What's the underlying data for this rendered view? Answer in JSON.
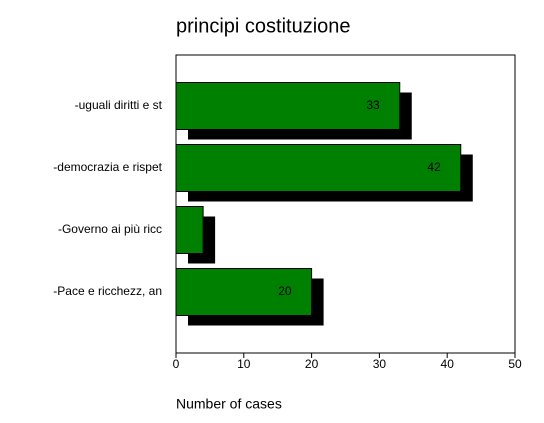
{
  "chart_data": {
    "type": "bar",
    "orientation": "horizontal",
    "title": "principi costituzione",
    "categories": [
      "-uguali diritti e st",
      "-democrazia e rispet",
      "-Governo ai più ricc",
      "-Pace e ricchezz, an"
    ],
    "values": [
      33,
      42,
      4,
      20
    ],
    "value_labels": [
      "33",
      "42",
      null,
      "20"
    ],
    "color": "#008000",
    "shadow_color": "#000000",
    "x_label": "Number of cases",
    "xlim": [
      0,
      50
    ],
    "xticks": [
      0,
      10,
      20,
      30,
      40,
      50
    ]
  }
}
